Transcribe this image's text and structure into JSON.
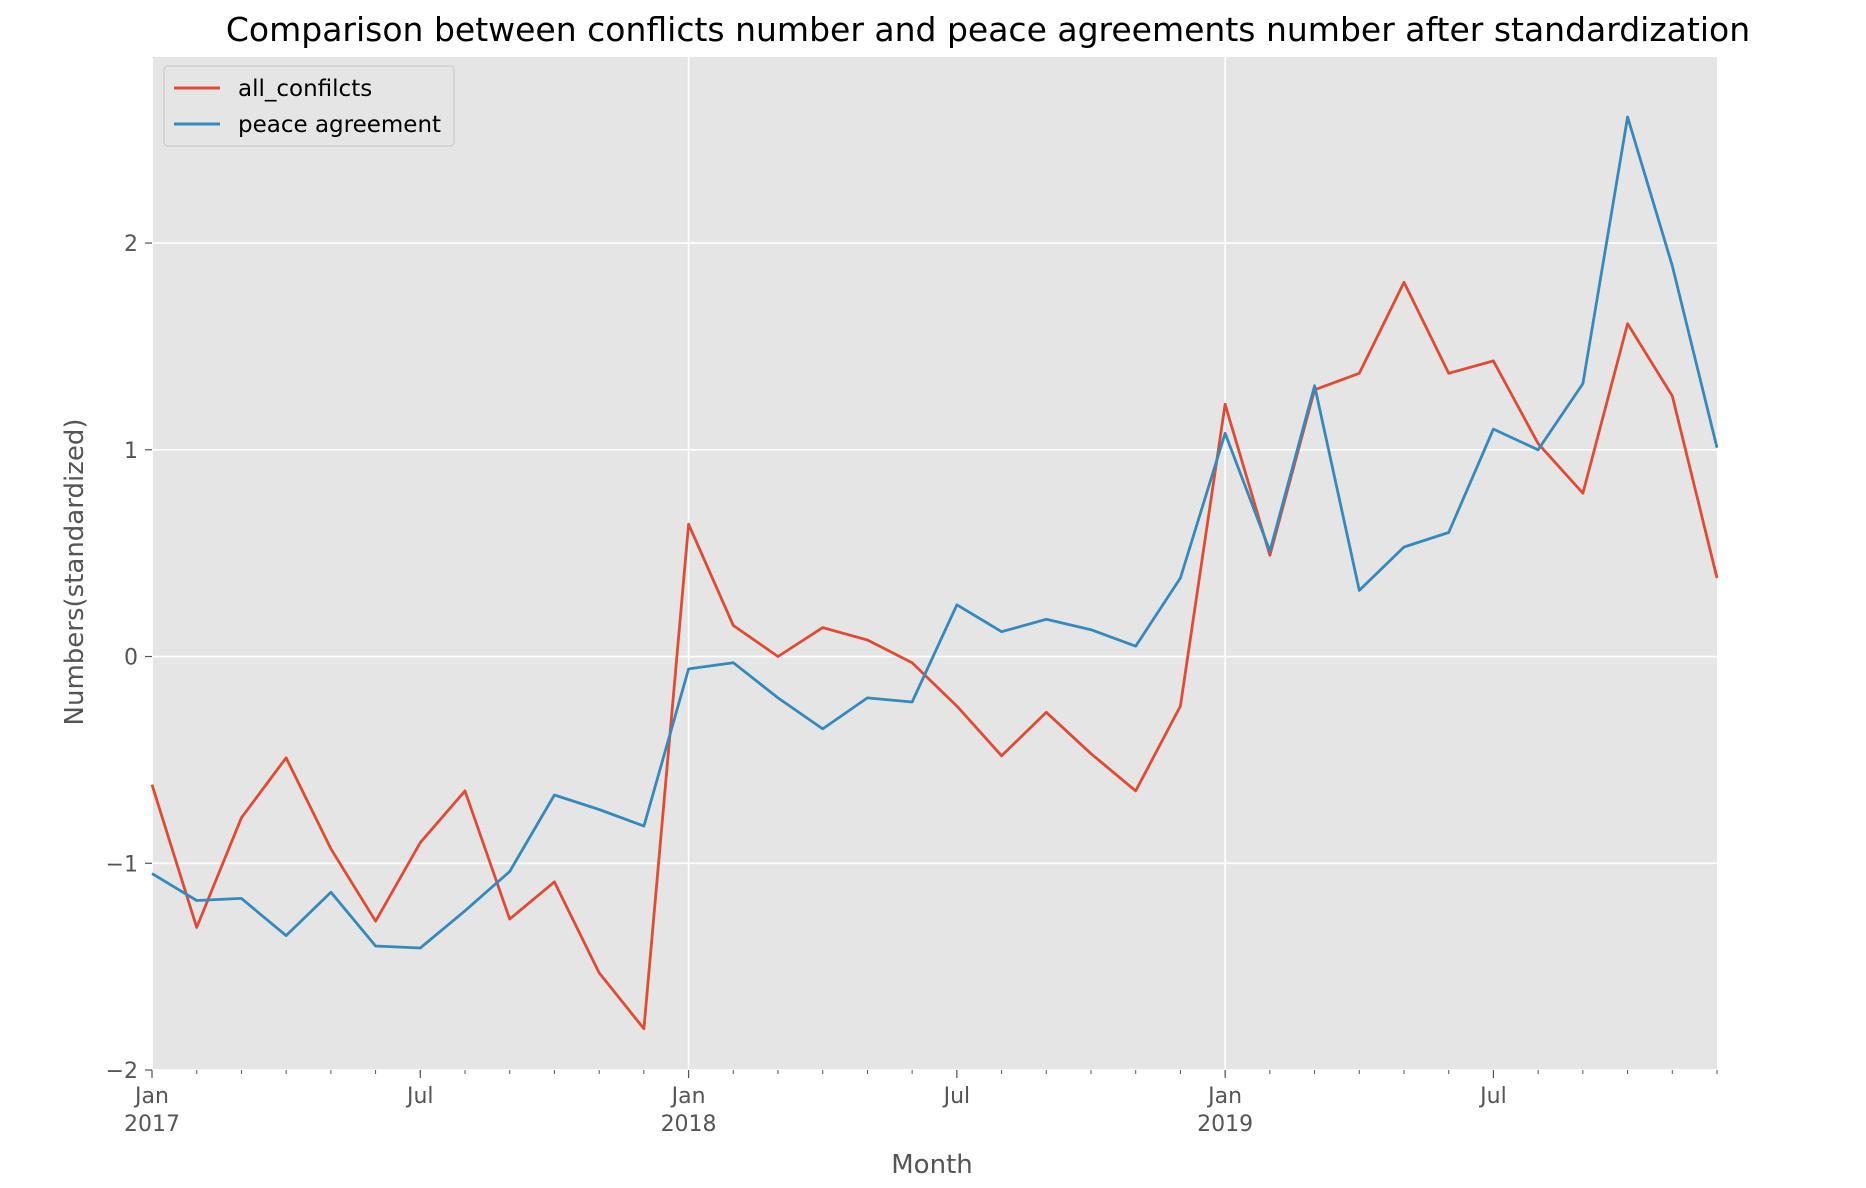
{
  "chart_data": {
    "type": "line",
    "title": "Comparison between conflicts number and peace agreements number after standardization",
    "xlabel": "Month",
    "ylabel": "Numbers(standardized)",
    "x": [
      "2017-01",
      "2017-02",
      "2017-03",
      "2017-04",
      "2017-05",
      "2017-06",
      "2017-07",
      "2017-08",
      "2017-09",
      "2017-10",
      "2017-11",
      "2017-12",
      "2018-01",
      "2018-02",
      "2018-03",
      "2018-04",
      "2018-05",
      "2018-06",
      "2018-07",
      "2018-08",
      "2018-09",
      "2018-10",
      "2018-11",
      "2018-12",
      "2019-01",
      "2019-02",
      "2019-03",
      "2019-04",
      "2019-05",
      "2019-06",
      "2019-07",
      "2019-08",
      "2019-09",
      "2019-10",
      "2019-11",
      "2019-12"
    ],
    "xlim": [
      "2017-01",
      "2019-12"
    ],
    "ylim": [
      -2.0,
      2.9
    ],
    "yticks": [
      -2,
      -1,
      0,
      1,
      2
    ],
    "ytick_labels": [
      "−2",
      "−1",
      "0",
      "1",
      "2"
    ],
    "xticks_major": [
      {
        "x": "2017-01",
        "line1": "Jan",
        "line2": "2017"
      },
      {
        "x": "2017-07",
        "line1": "Jul",
        "line2": ""
      },
      {
        "x": "2018-01",
        "line1": "Jan",
        "line2": "2018"
      },
      {
        "x": "2018-07",
        "line1": "Jul",
        "line2": ""
      },
      {
        "x": "2019-01",
        "line1": "Jan",
        "line2": "2019"
      },
      {
        "x": "2019-07",
        "line1": "Jul",
        "line2": ""
      }
    ],
    "grid": true,
    "legend_position": "upper-left",
    "series": [
      {
        "name": "all_confilcts",
        "color": "#E24A33",
        "values": [
          -0.62,
          -1.31,
          -0.78,
          -0.49,
          -0.93,
          -1.28,
          -0.9,
          -0.65,
          -1.27,
          -1.09,
          -1.53,
          -1.8,
          0.64,
          0.15,
          0.0,
          0.14,
          0.08,
          -0.03,
          -0.24,
          -0.48,
          -0.27,
          -0.47,
          -0.65,
          -0.24,
          1.22,
          0.49,
          1.29,
          1.37,
          1.81,
          1.37,
          1.43,
          1.03,
          0.79,
          1.61,
          1.26,
          0.38
        ]
      },
      {
        "name": "peace agreement",
        "color": "#348ABD",
        "values": [
          -1.05,
          -1.18,
          -1.17,
          -1.35,
          -1.14,
          -1.4,
          -1.41,
          -1.23,
          -1.04,
          -0.67,
          -0.74,
          -0.82,
          -0.06,
          -0.03,
          -0.2,
          -0.35,
          -0.2,
          -0.22,
          0.25,
          0.12,
          0.18,
          0.13,
          0.05,
          0.38,
          1.08,
          0.51,
          1.31,
          0.32,
          0.53,
          0.6,
          1.1,
          1.0,
          1.32,
          2.61,
          1.89,
          1.01
        ]
      }
    ]
  }
}
